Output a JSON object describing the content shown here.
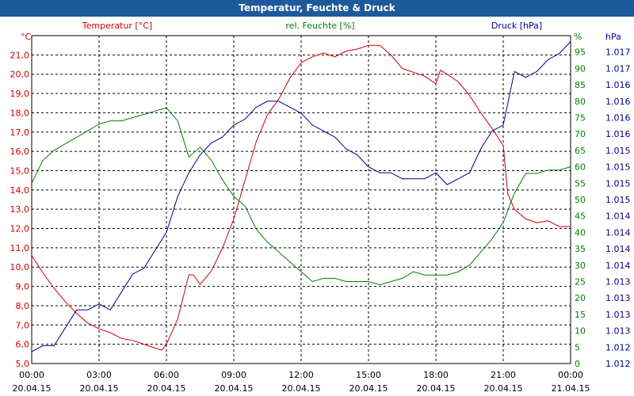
{
  "window": {
    "title": "Temperatur, Feuchte & Druck"
  },
  "chart_data": {
    "type": "line",
    "title": "Temperatur, Feuchte & Druck",
    "grid": true,
    "x_ticks": [
      {
        "time": "00:00",
        "date": "20.04.15"
      },
      {
        "time": "03:00",
        "date": "20.04.15"
      },
      {
        "time": "06:00",
        "date": "20.04.15"
      },
      {
        "time": "09:00",
        "date": "20.04.15"
      },
      {
        "time": "12:00",
        "date": "20.04.15"
      },
      {
        "time": "15:00",
        "date": "20.04.15"
      },
      {
        "time": "18:00",
        "date": "20.04.15"
      },
      {
        "time": "21:00",
        "date": "20.04.15"
      },
      {
        "time": "00:00",
        "date": "21.04.15"
      }
    ],
    "x_range_hours": [
      0,
      24
    ],
    "axes": {
      "temperature": {
        "label": "Temperatur [°C]",
        "unit": "°C",
        "color": "#cc0000",
        "ylim": [
          5.0,
          22.0
        ],
        "ticks": [
          "5,0",
          "6,0",
          "7,0",
          "8,0",
          "9,0",
          "10,0",
          "11,0",
          "12,0",
          "13,0",
          "14,0",
          "15,0",
          "16,0",
          "17,0",
          "18,0",
          "19,0",
          "20,0",
          "21,0"
        ]
      },
      "humidity": {
        "label": "rel. Feuchte [%]",
        "unit": "%",
        "color": "#008000",
        "ylim": [
          0,
          100
        ],
        "ticks": [
          "0",
          "5",
          "10",
          "15",
          "20",
          "25",
          "30",
          "35",
          "40",
          "45",
          "50",
          "55",
          "60",
          "65",
          "70",
          "75",
          "80",
          "85",
          "90",
          "95"
        ]
      },
      "pressure": {
        "label": "Druck [hPa]",
        "unit": "hPa",
        "color": "#00008b",
        "ylim": [
          1.012,
          1.0175
        ],
        "ticks": [
          "1.012",
          "1.012",
          "1.013",
          "1.013",
          "1.013",
          "1.013",
          "1.014",
          "1.014",
          "1.014",
          "1.014",
          "1.015",
          "1.015",
          "1.015",
          "1.015",
          "1.016",
          "1.016",
          "1.016",
          "1.016",
          "1.017",
          "1.017"
        ]
      }
    },
    "series": [
      {
        "axis": "temperature",
        "color": "#cc0000",
        "x": [
          0,
          0.5,
          1,
          1.5,
          2,
          2.5,
          3,
          3.5,
          4,
          4.5,
          5,
          5.5,
          5.8,
          6,
          6.5,
          7,
          7.2,
          7.5,
          8,
          8.5,
          9,
          9.5,
          10,
          10.5,
          11,
          11.5,
          12,
          12.5,
          13,
          13.5,
          14,
          14.5,
          15,
          15.5,
          16,
          16.5,
          17,
          17.5,
          18,
          18.2,
          18.5,
          19,
          19.5,
          20,
          20.5,
          21,
          21.2,
          21.5,
          22,
          22.5,
          23,
          23.5,
          24
        ],
        "values": [
          10.6,
          9.7,
          8.9,
          8.2,
          7.6,
          7.1,
          6.8,
          6.6,
          6.3,
          6.2,
          6.0,
          5.8,
          5.7,
          6.0,
          7.3,
          9.6,
          9.6,
          9.1,
          9.8,
          11.0,
          12.5,
          14.5,
          16.5,
          17.9,
          18.7,
          19.8,
          20.6,
          20.9,
          21.1,
          20.9,
          21.2,
          21.3,
          21.5,
          21.5,
          21.0,
          20.3,
          20.1,
          19.9,
          19.5,
          20.2,
          20.0,
          19.6,
          18.9,
          18.0,
          17.2,
          16.3,
          13.8,
          13.0,
          12.5,
          12.3,
          12.4,
          12.1,
          12.1
        ]
      },
      {
        "axis": "humidity",
        "color": "#008000",
        "x": [
          0,
          0.5,
          1,
          1.5,
          2,
          2.5,
          3,
          3.5,
          4,
          4.5,
          5,
          5.5,
          6,
          6.5,
          7,
          7.5,
          8,
          8.5,
          9,
          9.5,
          10,
          10.5,
          11,
          11.5,
          12,
          12.5,
          13,
          13.5,
          14,
          14.5,
          15,
          15.5,
          16,
          16.5,
          17,
          17.5,
          18,
          18.5,
          19,
          19.5,
          20,
          20.5,
          21,
          21.5,
          22,
          22.5,
          23,
          23.5,
          24
        ],
        "values": [
          55,
          62,
          65,
          67,
          69,
          71,
          73,
          74,
          74,
          75,
          76,
          77,
          78,
          74,
          63,
          66,
          62,
          56,
          51,
          48,
          41,
          37,
          34,
          31,
          28,
          25,
          26,
          26,
          25,
          25,
          25,
          24,
          25,
          26,
          28,
          27,
          27,
          27,
          28,
          30,
          34,
          38,
          43,
          52,
          58,
          58,
          59,
          59,
          60
        ]
      },
      {
        "axis": "pressure",
        "color": "#00008b",
        "x": [
          0,
          0.5,
          1,
          1.5,
          2,
          2.5,
          3,
          3.5,
          4,
          4.5,
          5,
          5.5,
          6,
          6.5,
          7,
          7.5,
          8,
          8.5,
          9,
          9.5,
          10,
          10.5,
          11,
          11.5,
          12,
          12.5,
          13,
          13.5,
          14,
          14.5,
          15,
          15.5,
          16,
          16.5,
          17,
          17.5,
          18,
          18.5,
          19,
          19.5,
          20,
          20.5,
          21,
          21.5,
          22,
          22.5,
          23,
          23.5,
          24
        ],
        "values": [
          1.0122,
          1.0123,
          1.0123,
          1.0126,
          1.0129,
          1.0129,
          1.013,
          1.0129,
          1.0132,
          1.0135,
          1.0136,
          1.0139,
          1.0142,
          1.0148,
          1.0152,
          1.0155,
          1.0157,
          1.0158,
          1.016,
          1.0161,
          1.0163,
          1.0164,
          1.0164,
          1.0163,
          1.0162,
          1.016,
          1.0159,
          1.0158,
          1.0156,
          1.0155,
          1.0153,
          1.0152,
          1.0152,
          1.0151,
          1.0151,
          1.0151,
          1.0152,
          1.015,
          1.0151,
          1.0152,
          1.0156,
          1.0159,
          1.016,
          1.0169,
          1.0168,
          1.0169,
          1.0171,
          1.0172,
          1.0174
        ]
      }
    ]
  }
}
